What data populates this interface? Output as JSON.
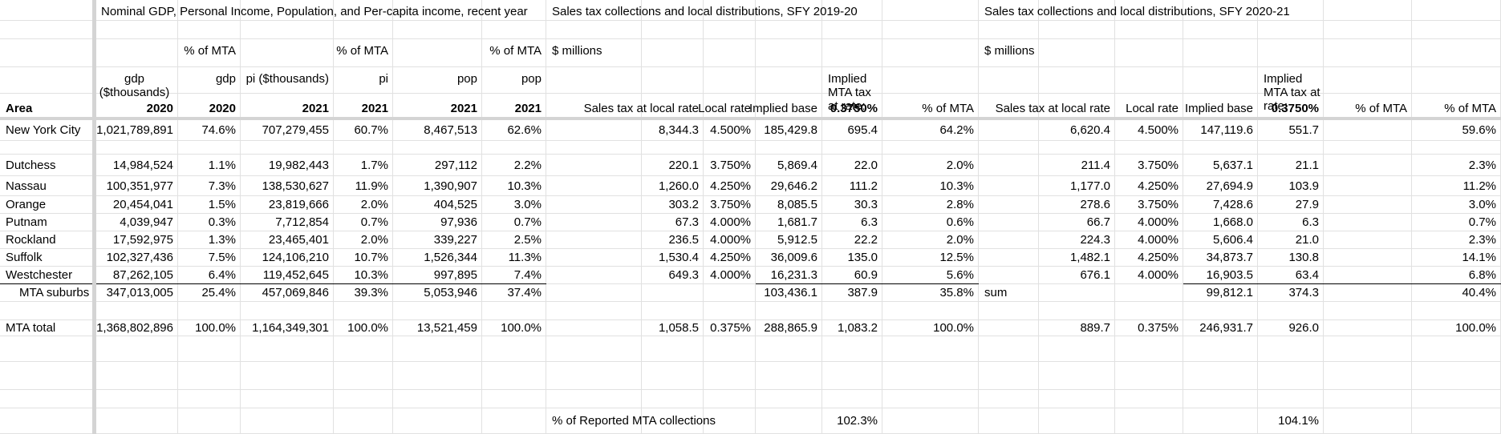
{
  "headers": {
    "section1": "Nominal GDP, Personal Income, Population, and Per-capita income, recent year",
    "section2": "Sales tax collections and local distributions, SFY 2019-20",
    "section3": "Sales tax collections and local distributions, SFY 2020-21",
    "pct_mta": "% of MTA",
    "millions": "$ millions",
    "gdp_thousands": "gdp ($thousands)",
    "gdp": "gdp",
    "pi_thousands": "pi ($thousands)",
    "pi": "pi",
    "pop": "pop",
    "implied_mta": "Implied MTA tax at rate:",
    "sales_tax_local": "Sales tax at local rate",
    "local_rate": "Local rate",
    "implied_base": "Implied base",
    "rate": "0.3750%",
    "area": "Area",
    "y2020": "2020",
    "y2021": "2021"
  },
  "rows": [
    {
      "area": "New York City",
      "gdp": "1,021,789,891",
      "gdp_pct": "74.6%",
      "pi": "707,279,455",
      "pi_pct": "60.7%",
      "pop": "8,467,513",
      "pop_pct": "62.6%",
      "s1_tax": "8,344.3",
      "s1_rate": "4.500%",
      "s1_base": "185,429.8",
      "s1_mta": "695.4",
      "s1_pct": "64.2%",
      "s2_tax": "6,620.4",
      "s2_rate": "4.500%",
      "s2_base": "147,119.6",
      "s2_mta": "551.7",
      "s2_pct": "59.6%"
    },
    {
      "area": "Dutchess",
      "gdp": "14,984,524",
      "gdp_pct": "1.1%",
      "pi": "19,982,443",
      "pi_pct": "1.7%",
      "pop": "297,112",
      "pop_pct": "2.2%",
      "s1_tax": "220.1",
      "s1_rate": "3.750%",
      "s1_base": "5,869.4",
      "s1_mta": "22.0",
      "s1_pct": "2.0%",
      "s2_tax": "211.4",
      "s2_rate": "3.750%",
      "s2_base": "5,637.1",
      "s2_mta": "21.1",
      "s2_pct": "2.3%"
    },
    {
      "area": "Nassau",
      "gdp": "100,351,977",
      "gdp_pct": "7.3%",
      "pi": "138,530,627",
      "pi_pct": "11.9%",
      "pop": "1,390,907",
      "pop_pct": "10.3%",
      "s1_tax": "1,260.0",
      "s1_rate": "4.250%",
      "s1_base": "29,646.2",
      "s1_mta": "111.2",
      "s1_pct": "10.3%",
      "s2_tax": "1,177.0",
      "s2_rate": "4.250%",
      "s2_base": "27,694.9",
      "s2_mta": "103.9",
      "s2_pct": "11.2%"
    },
    {
      "area": "Orange",
      "gdp": "20,454,041",
      "gdp_pct": "1.5%",
      "pi": "23,819,666",
      "pi_pct": "2.0%",
      "pop": "404,525",
      "pop_pct": "3.0%",
      "s1_tax": "303.2",
      "s1_rate": "3.750%",
      "s1_base": "8,085.5",
      "s1_mta": "30.3",
      "s1_pct": "2.8%",
      "s2_tax": "278.6",
      "s2_rate": "3.750%",
      "s2_base": "7,428.6",
      "s2_mta": "27.9",
      "s2_pct": "3.0%"
    },
    {
      "area": "Putnam",
      "gdp": "4,039,947",
      "gdp_pct": "0.3%",
      "pi": "7,712,854",
      "pi_pct": "0.7%",
      "pop": "97,936",
      "pop_pct": "0.7%",
      "s1_tax": "67.3",
      "s1_rate": "4.000%",
      "s1_base": "1,681.7",
      "s1_mta": "6.3",
      "s1_pct": "0.6%",
      "s2_tax": "66.7",
      "s2_rate": "4.000%",
      "s2_base": "1,668.0",
      "s2_mta": "6.3",
      "s2_pct": "0.7%"
    },
    {
      "area": "Rockland",
      "gdp": "17,592,975",
      "gdp_pct": "1.3%",
      "pi": "23,465,401",
      "pi_pct": "2.0%",
      "pop": "339,227",
      "pop_pct": "2.5%",
      "s1_tax": "236.5",
      "s1_rate": "4.000%",
      "s1_base": "5,912.5",
      "s1_mta": "22.2",
      "s1_pct": "2.0%",
      "s2_tax": "224.3",
      "s2_rate": "4.000%",
      "s2_base": "5,606.4",
      "s2_mta": "21.0",
      "s2_pct": "2.3%"
    },
    {
      "area": "Suffolk",
      "gdp": "102,327,436",
      "gdp_pct": "7.5%",
      "pi": "124,106,210",
      "pi_pct": "10.7%",
      "pop": "1,526,344",
      "pop_pct": "11.3%",
      "s1_tax": "1,530.4",
      "s1_rate": "4.250%",
      "s1_base": "36,009.6",
      "s1_mta": "135.0",
      "s1_pct": "12.5%",
      "s2_tax": "1,482.1",
      "s2_rate": "4.250%",
      "s2_base": "34,873.7",
      "s2_mta": "130.8",
      "s2_pct": "14.1%"
    },
    {
      "area": "Westchester",
      "gdp": "87,262,105",
      "gdp_pct": "6.4%",
      "pi": "119,452,645",
      "pi_pct": "10.3%",
      "pop": "997,895",
      "pop_pct": "7.4%",
      "s1_tax": "649.3",
      "s1_rate": "4.000%",
      "s1_base": "16,231.3",
      "s1_mta": "60.9",
      "s1_pct": "5.6%",
      "s2_tax": "676.1",
      "s2_rate": "4.000%",
      "s2_base": "16,903.5",
      "s2_mta": "63.4",
      "s2_pct": "6.8%"
    },
    {
      "area": "MTA suburbs",
      "gdp": "347,013,005",
      "gdp_pct": "25.4%",
      "pi": "457,069,846",
      "pi_pct": "39.3%",
      "pop": "5,053,946",
      "pop_pct": "37.4%",
      "s1_tax": "",
      "s1_rate": "",
      "s1_base": "103,436.1",
      "s1_mta": "387.9",
      "s1_pct": "35.8%",
      "s2_label": "sum",
      "s2_tax": "",
      "s2_rate": "",
      "s2_base": "99,812.1",
      "s2_mta": "374.3",
      "s2_pct": "40.4%"
    },
    {
      "area": "MTA total",
      "gdp": "1,368,802,896",
      "gdp_pct": "100.0%",
      "pi": "1,164,349,301",
      "pi_pct": "100.0%",
      "pop": "13,521,459",
      "pop_pct": "100.0%",
      "s1_tax": "1,058.5",
      "s1_rate": "0.375%",
      "s1_base": "288,865.9",
      "s1_mta": "1,083.2",
      "s1_pct": "100.0%",
      "s2_tax": "889.7",
      "s2_rate": "0.375%",
      "s2_base": "246,931.7",
      "s2_mta": "926.0",
      "s2_pct": "100.0%"
    }
  ],
  "footer": {
    "label": "% of Reported MTA collections",
    "s1_value": "102.3%",
    "s2_value": "104.1%"
  }
}
